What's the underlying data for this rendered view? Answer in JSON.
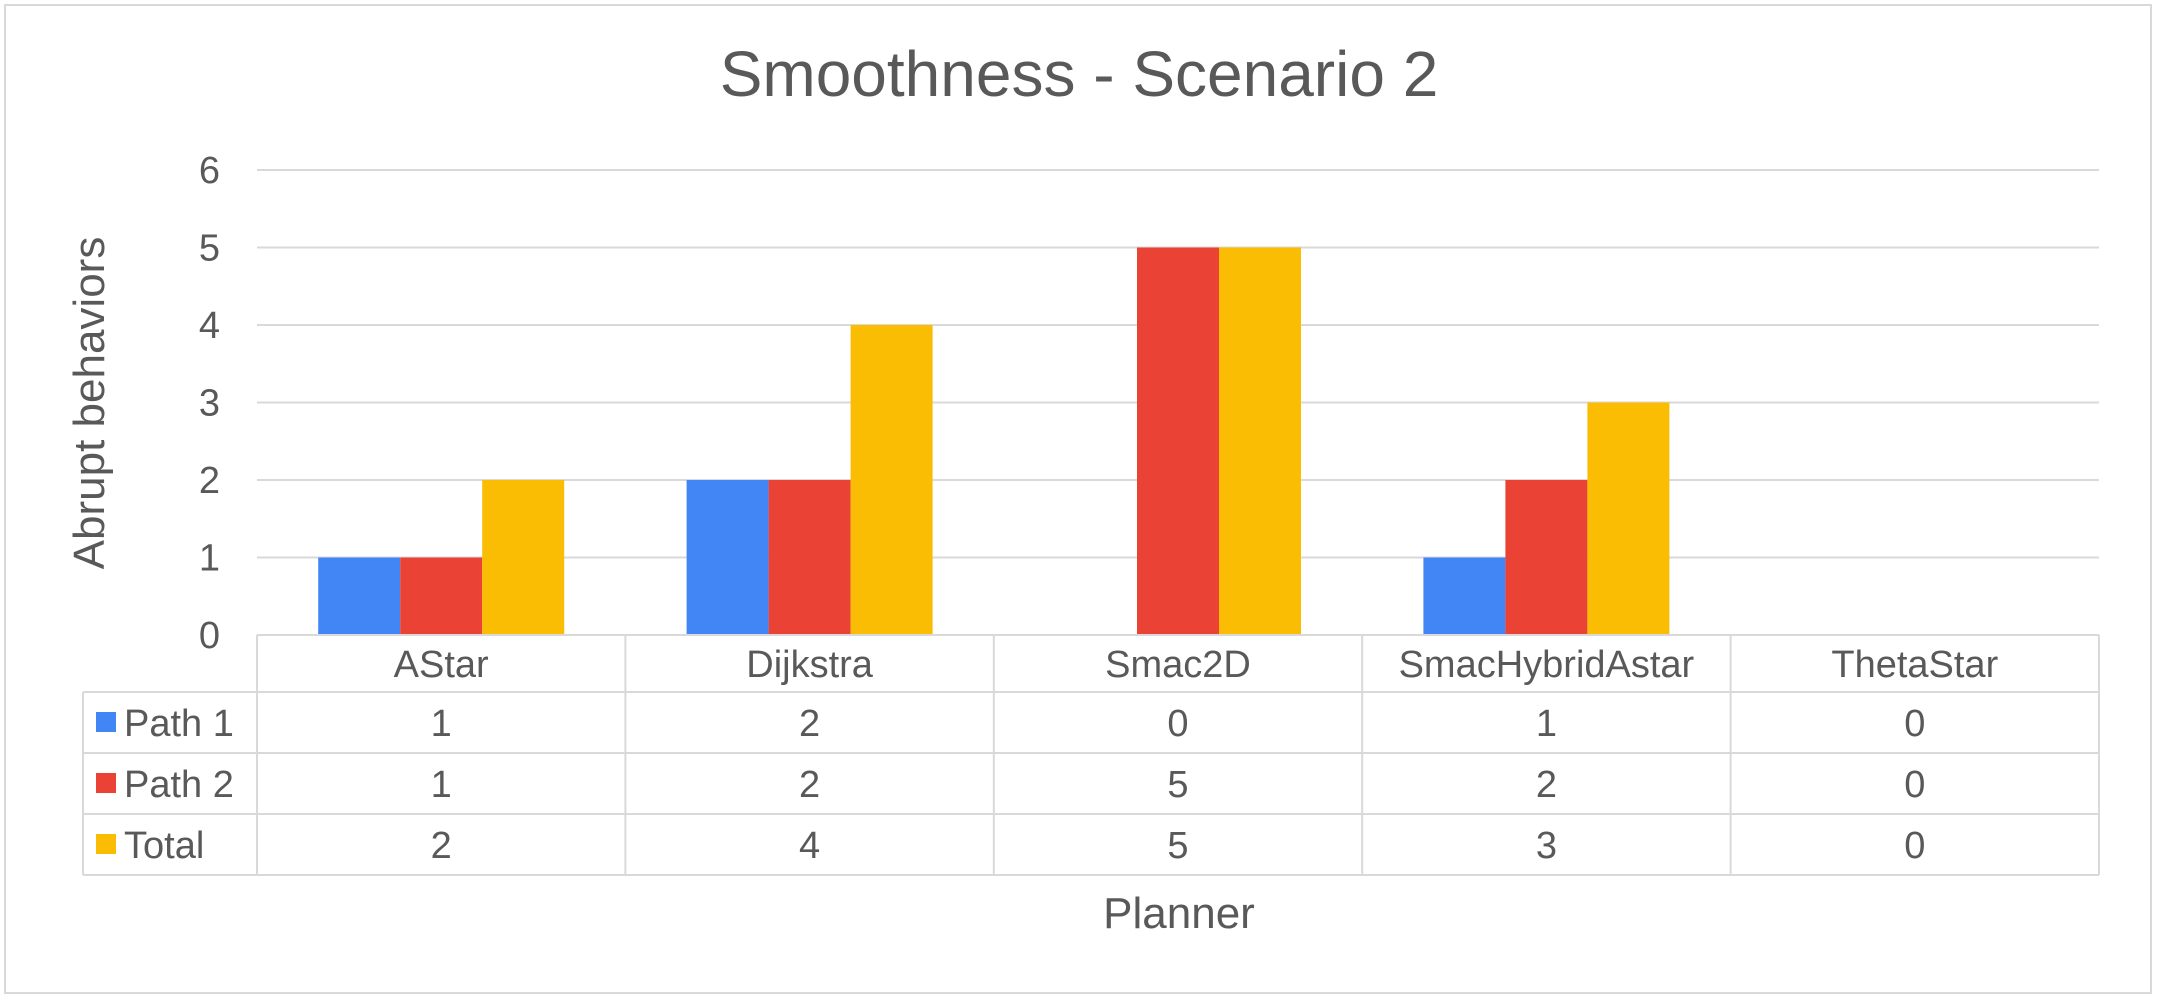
{
  "chart_data": {
    "type": "bar",
    "title": "Smoothness - Scenario 2",
    "xlabel": "Planner",
    "ylabel": "Abrupt behaviors",
    "ylim": [
      0,
      6
    ],
    "yticks": [
      0,
      1,
      2,
      3,
      4,
      5,
      6
    ],
    "grid": true,
    "legend": "data table",
    "categories": [
      "AStar",
      "Dijkstra",
      "Smac2D",
      "SmacHybridAstar",
      "ThetaStar"
    ],
    "series": [
      {
        "name": "Path 1",
        "color": "#4285f4",
        "values": [
          1,
          2,
          0,
          1,
          0
        ]
      },
      {
        "name": "Path 2",
        "color": "#ea4335",
        "values": [
          1,
          2,
          5,
          2,
          0
        ]
      },
      {
        "name": "Total",
        "color": "#fbbc04",
        "values": [
          2,
          4,
          5,
          3,
          0
        ]
      }
    ]
  }
}
